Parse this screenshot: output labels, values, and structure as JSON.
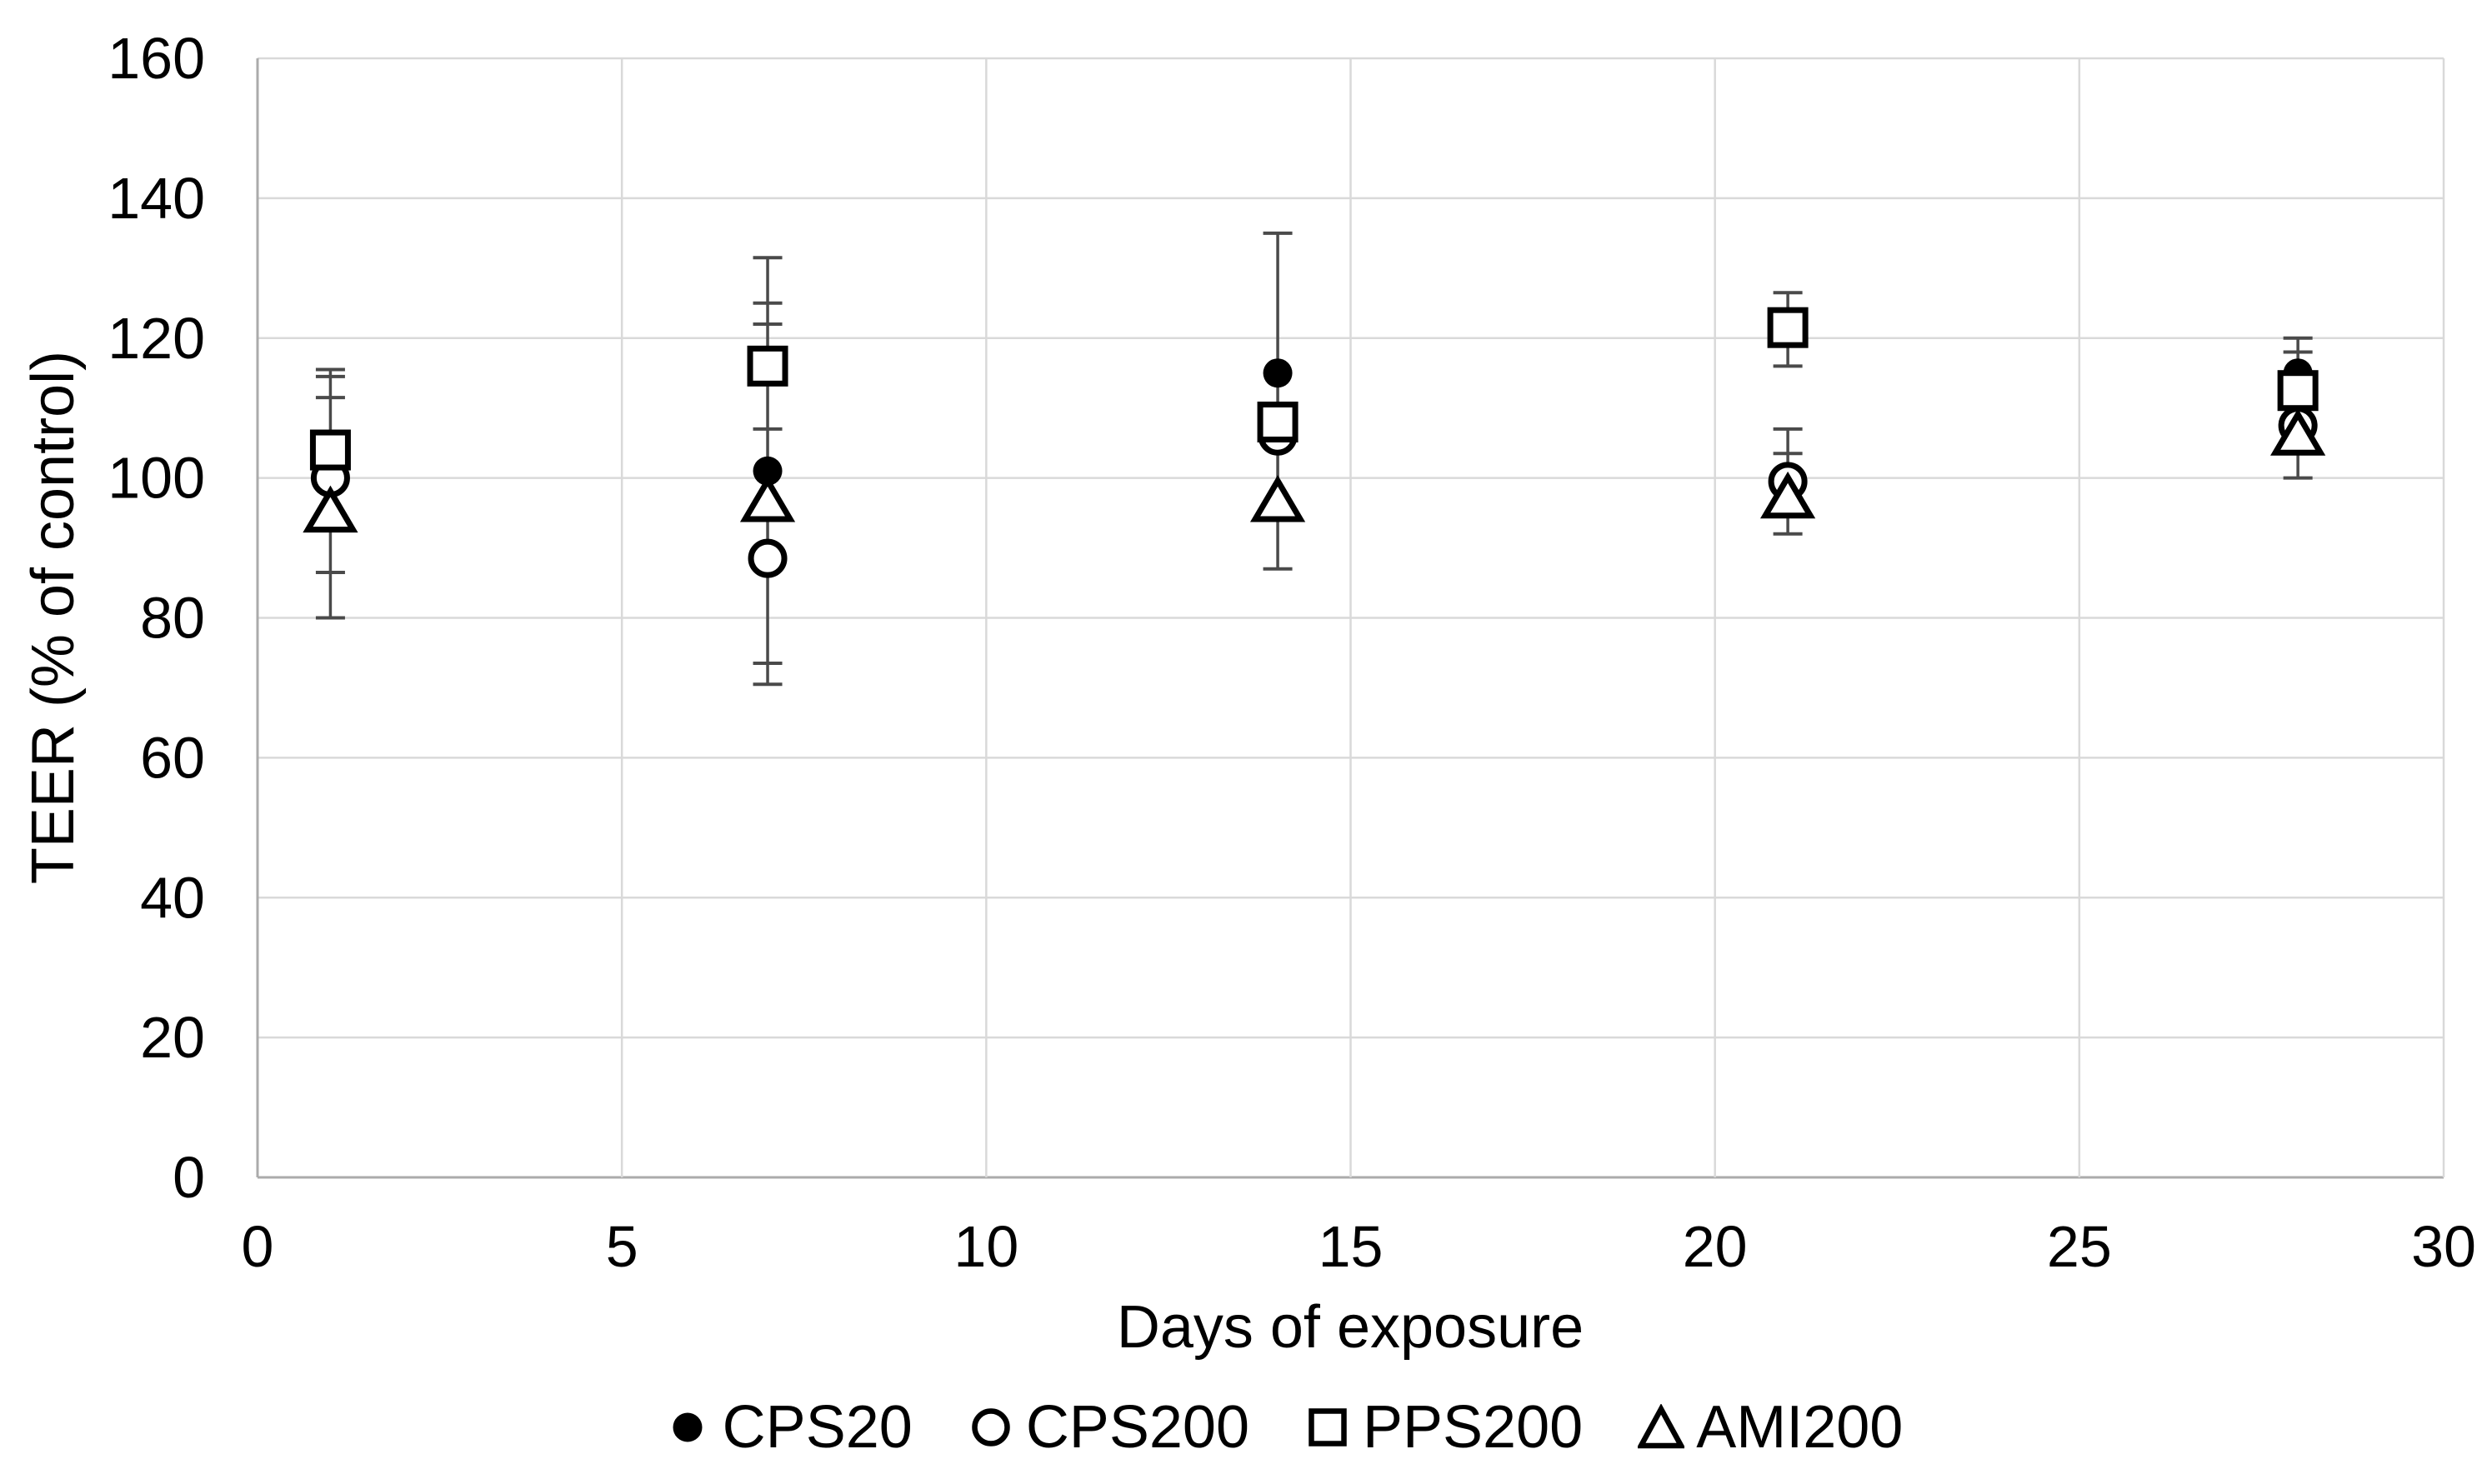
{
  "chart_data": {
    "type": "scatter",
    "title": "",
    "xlabel": "Days of exposure",
    "ylabel": "TEER (% of control)",
    "x_days": [
      1,
      7,
      14,
      21,
      28
    ],
    "xlim": [
      0,
      30
    ],
    "ylim": [
      0,
      160
    ],
    "x_ticks": [
      0,
      5,
      10,
      15,
      20,
      25,
      30
    ],
    "y_ticks": [
      0,
      20,
      40,
      60,
      80,
      100,
      120,
      140,
      160
    ],
    "grid": true,
    "legend_position": "bottom",
    "series": [
      {
        "name": "CPS20",
        "marker": "filled-circle",
        "values": [
          102,
          101,
          115,
          99.5,
          115
        ]
      },
      {
        "name": "CPS200",
        "marker": "open-circle",
        "values": [
          100,
          88.5,
          106,
          99.5,
          107.5
        ]
      },
      {
        "name": "PPS200",
        "marker": "open-square",
        "values": [
          104,
          116,
          108,
          121.5,
          112.5
        ]
      },
      {
        "name": "AMI200",
        "marker": "open-triangle",
        "values": [
          95,
          96.5,
          96.5,
          97,
          106
        ]
      }
    ],
    "error_bars": [
      {
        "x": 1,
        "segments": [
          [
            80,
            115.5
          ]
        ],
        "caps": [
          80,
          86.5,
          111.5,
          114.5,
          115.5
        ]
      },
      {
        "x": 7,
        "segments": [
          [
            70.5,
            131.5
          ]
        ],
        "caps": [
          70.5,
          73.5,
          107,
          122,
          125,
          131.5
        ]
      },
      {
        "x": 14,
        "segments": [
          [
            87,
            135
          ]
        ],
        "caps": [
          87,
          135
        ]
      },
      {
        "x": 21,
        "segments": [
          [
            92,
            107
          ],
          [
            116,
            126.5
          ]
        ],
        "caps": [
          92,
          103.5,
          107,
          116,
          126.5
        ]
      },
      {
        "x": 28,
        "segments": [
          [
            100,
            120
          ]
        ],
        "caps": [
          100,
          118,
          120
        ]
      }
    ],
    "colors": {
      "marker": "#000000",
      "marker_fill": "#ffffff",
      "whisker": "#4a4a4a",
      "gridline": "#d9d9d9",
      "axis": "#ababab",
      "text": "#000000",
      "background": "#ffffff"
    }
  }
}
